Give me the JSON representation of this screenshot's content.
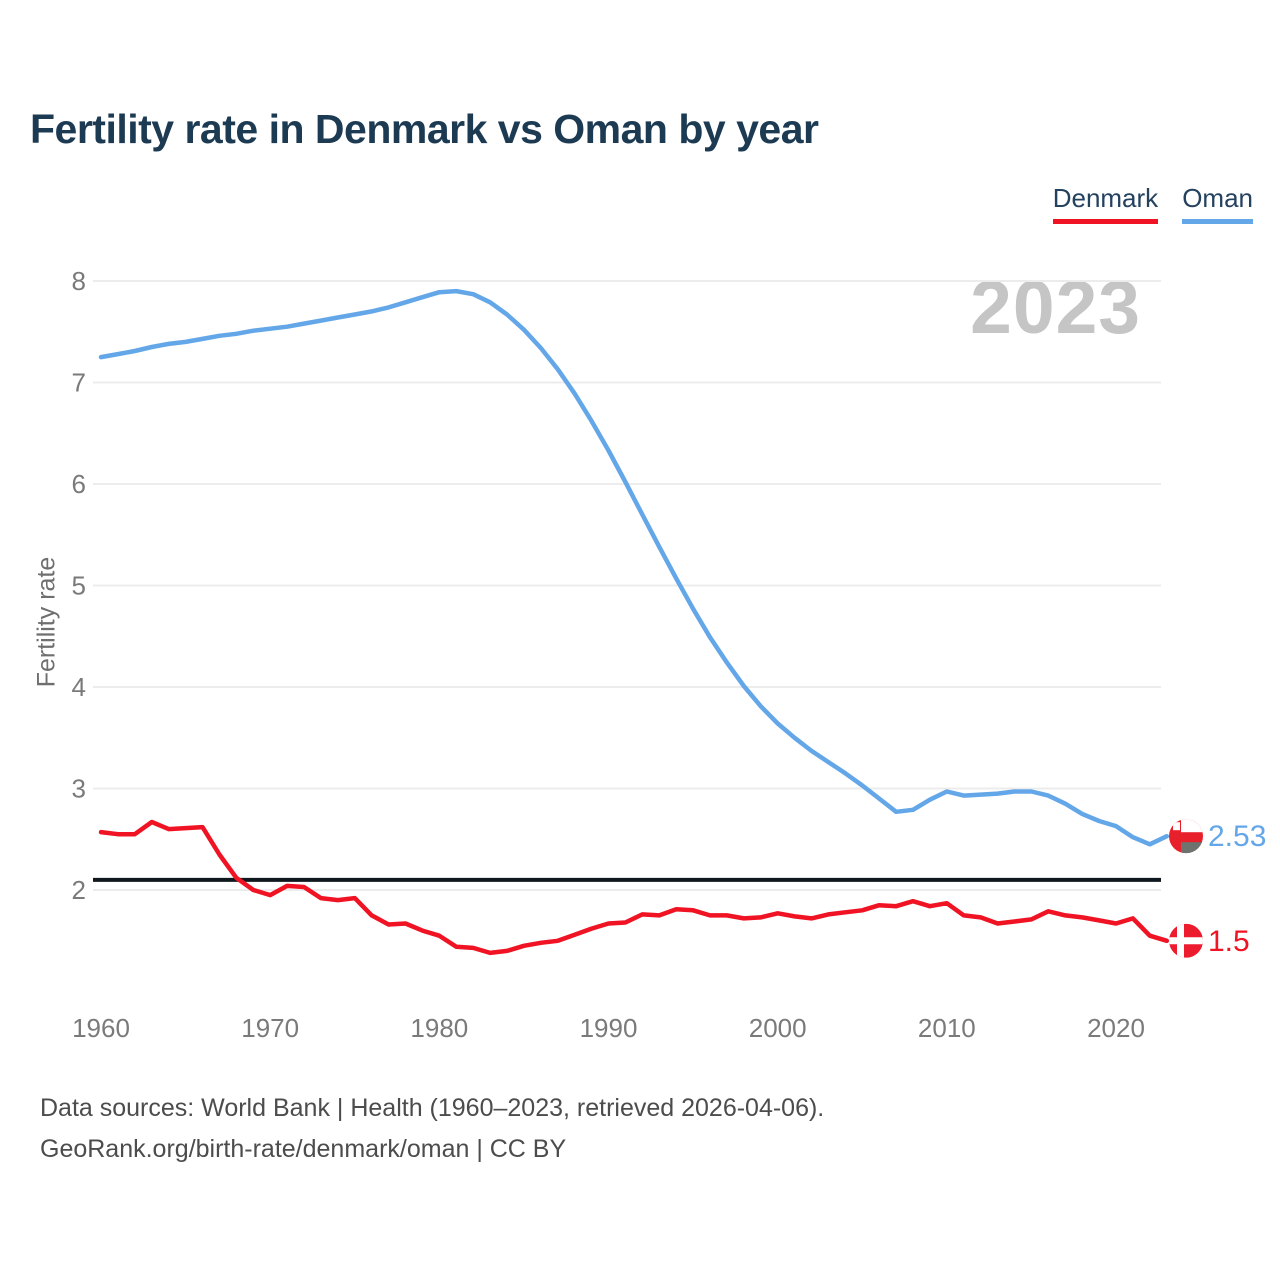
{
  "title": "Fertility rate in Denmark vs Oman by year",
  "legend": [
    {
      "label": "Denmark",
      "color": "#f01323"
    },
    {
      "label": "Oman",
      "color": "#64a7e8"
    }
  ],
  "watermark": "2023",
  "y_axis": {
    "label": "Fertility rate",
    "ticks": [
      8,
      7,
      6,
      5,
      4,
      3,
      2
    ]
  },
  "x_axis": {
    "ticks": [
      1960,
      1970,
      1980,
      1990,
      2000,
      2010,
      2020
    ]
  },
  "footer": {
    "line1": "Data sources: World Bank | Health (1960–2023, retrieved 2026-04-06).",
    "line2": "GeoRank.org/birth-rate/denmark/oman | CC BY"
  },
  "chart_data": {
    "type": "line",
    "title": "Fertility rate in Denmark vs Oman by year",
    "xlabel": "",
    "ylabel": "Fertility rate",
    "x_start": 1960,
    "x_end": 2023,
    "x_ticks": [
      1960,
      1970,
      1980,
      1990,
      2000,
      2010,
      2020
    ],
    "y_gridlines": [
      2,
      3,
      4,
      5,
      6,
      7,
      8
    ],
    "ylim": [
      1.2,
      8.2
    ],
    "grid": "horizontal",
    "legend_position": "top-right",
    "reference_line": {
      "value": 2.1,
      "color": "#10181f"
    },
    "series": [
      {
        "name": "Denmark",
        "color": "#f01323",
        "end_label": "1.5",
        "end_value": 1.5,
        "values": [
          2.57,
          2.55,
          2.55,
          2.67,
          2.6,
          2.61,
          2.62,
          2.35,
          2.12,
          2.0,
          1.95,
          2.04,
          2.03,
          1.92,
          1.9,
          1.92,
          1.75,
          1.66,
          1.67,
          1.6,
          1.55,
          1.44,
          1.43,
          1.38,
          1.4,
          1.45,
          1.48,
          1.5,
          1.56,
          1.62,
          1.67,
          1.68,
          1.76,
          1.75,
          1.81,
          1.8,
          1.75,
          1.75,
          1.72,
          1.73,
          1.77,
          1.74,
          1.72,
          1.76,
          1.78,
          1.8,
          1.85,
          1.84,
          1.89,
          1.84,
          1.87,
          1.75,
          1.73,
          1.67,
          1.69,
          1.71,
          1.79,
          1.75,
          1.73,
          1.7,
          1.67,
          1.72,
          1.55,
          1.5
        ]
      },
      {
        "name": "Oman",
        "color": "#64a7e8",
        "end_label": "2.53",
        "end_value": 2.53,
        "values": [
          7.25,
          7.28,
          7.31,
          7.35,
          7.38,
          7.4,
          7.43,
          7.46,
          7.48,
          7.51,
          7.53,
          7.55,
          7.58,
          7.61,
          7.64,
          7.67,
          7.7,
          7.74,
          7.79,
          7.84,
          7.89,
          7.9,
          7.87,
          7.79,
          7.67,
          7.52,
          7.34,
          7.13,
          6.89,
          6.62,
          6.33,
          6.02,
          5.7,
          5.38,
          5.07,
          4.77,
          4.49,
          4.24,
          4.01,
          3.81,
          3.64,
          3.5,
          3.37,
          3.26,
          3.15,
          3.03,
          2.9,
          2.77,
          2.79,
          2.89,
          2.97,
          2.93,
          2.94,
          2.95,
          2.97,
          2.97,
          2.93,
          2.85,
          2.75,
          2.68,
          2.63,
          2.52,
          2.45,
          2.53
        ]
      }
    ]
  },
  "flags": {
    "denmark": {
      "base": "#ed1b2e",
      "cross": "#ffffff"
    },
    "oman": {
      "base": "#e8202c",
      "top": "#ffffff",
      "bottom": "#6d736f",
      "emblem": "#ffffff"
    }
  }
}
